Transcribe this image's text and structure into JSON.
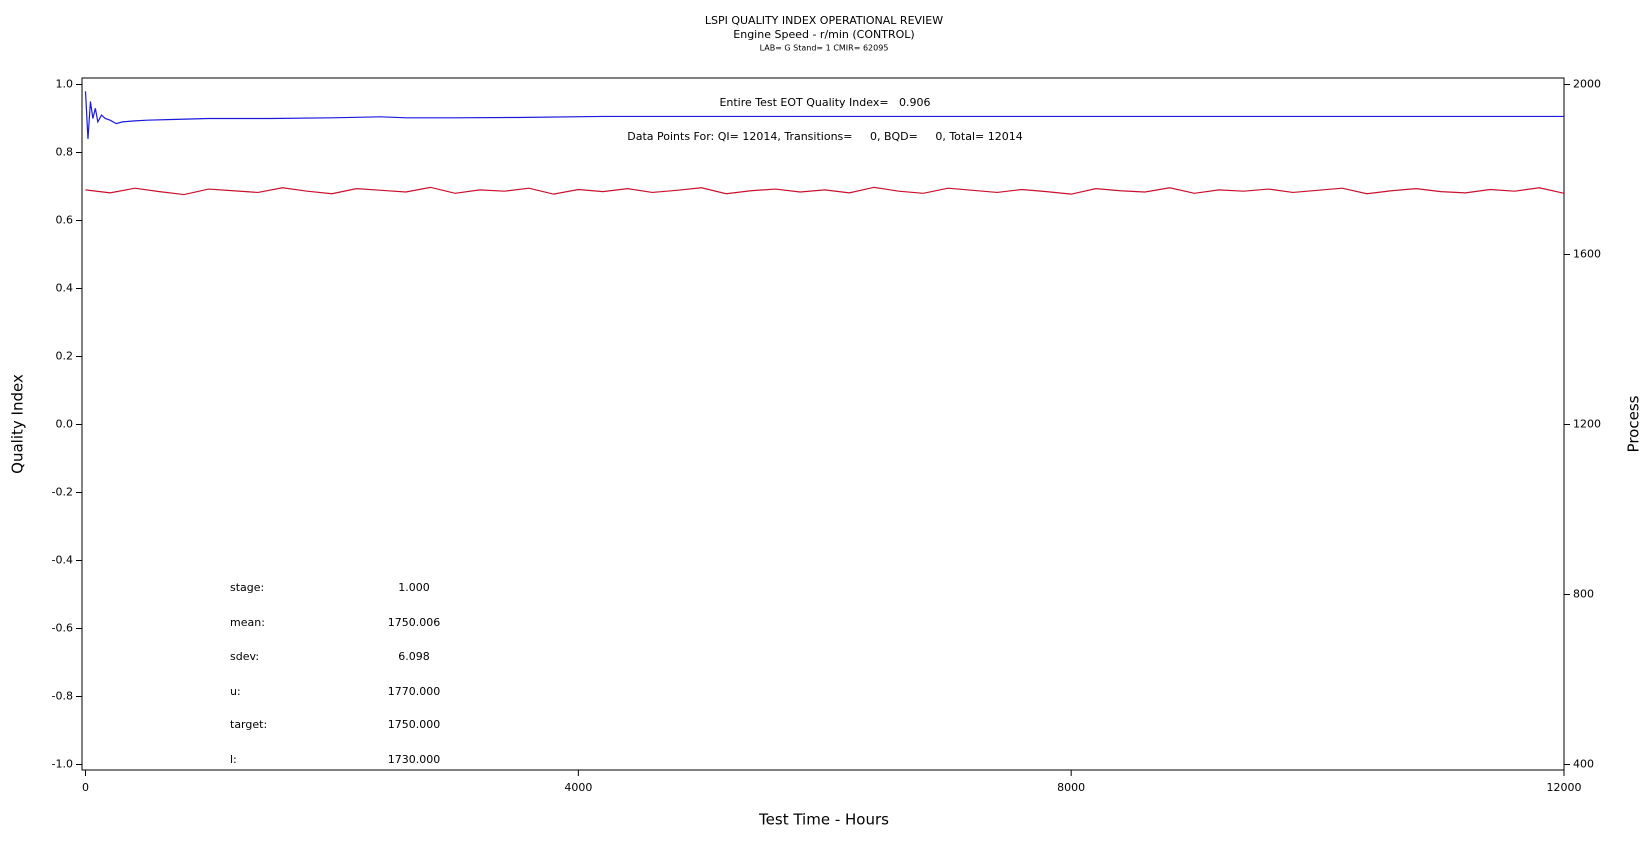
{
  "chart_data": {
    "type": "line",
    "title": "LSPI QUALITY INDEX OPERATIONAL REVIEW",
    "subtitle": "Engine Speed - r/min (CONTROL)",
    "caption": "LAB= G Stand= 1 CMIR= 62095",
    "xlabel": "Test Time - Hours",
    "ylabel": "Quality Index",
    "y2label": "Process",
    "xlim": [
      0,
      12000
    ],
    "xticks": [
      0,
      4000,
      8000,
      12000
    ],
    "ylim": [
      -1,
      1
    ],
    "yticks": [
      {
        "value": -1,
        "label": "-1.0"
      },
      -0.8,
      -0.6,
      -0.4,
      -0.2,
      {
        "value": 0,
        "label": "0.0"
      },
      0.2,
      0.4,
      0.6,
      0.8,
      {
        "value": 1,
        "label": "1.0"
      }
    ],
    "y2lim": [
      400,
      2000
    ],
    "y2ticks": [
      400,
      800,
      1200,
      1600,
      2000
    ],
    "series": [
      {
        "color": "#c8102e",
        "axis": "y2",
        "x": [
          0,
          200,
          400,
          600,
          800,
          1000,
          1200,
          1400,
          1600,
          1800,
          2000,
          2200,
          2400,
          2600,
          2800,
          3000,
          3200,
          3400,
          3600,
          3800,
          4000,
          4200,
          4400,
          4600,
          4800,
          5000,
          5200,
          5400,
          5600,
          5800,
          6000,
          6200,
          6400,
          6600,
          6800,
          7000,
          7200,
          7400,
          7600,
          7800,
          8000,
          8200,
          8400,
          8600,
          8800,
          9000,
          9200,
          9400,
          9600,
          9800,
          10000,
          10200,
          10400,
          10600,
          10800,
          11000,
          11200,
          11400,
          11600,
          11800,
          12000
        ],
        "values": [
          1752,
          1745,
          1756,
          1748,
          1741,
          1754,
          1750,
          1746,
          1757,
          1749,
          1743,
          1755,
          1751,
          1747,
          1758,
          1744,
          1752,
          1749,
          1756,
          1742,
          1753,
          1748,
          1755,
          1746,
          1751,
          1757,
          1743,
          1750,
          1754,
          1747,
          1752,
          1745,
          1758,
          1749,
          1744,
          1756,
          1751,
          1746,
          1753,
          1748,
          1742,
          1755,
          1750,
          1747,
          1757,
          1744,
          1752,
          1749,
          1754,
          1746,
          1751,
          1756,
          1743,
          1750,
          1755,
          1748,
          1745,
          1753,
          1749,
          1757,
          1744
        ]
      },
      {
        "color": "#1a1adc",
        "x": [
          0,
          20,
          40,
          60,
          80,
          100,
          130,
          160,
          200,
          250,
          300,
          400,
          500,
          700,
          1000,
          1500,
          2000,
          2400,
          2600,
          3000,
          3500,
          4200,
          6000,
          8000,
          10000,
          12000
        ],
        "values": [
          0.98,
          0.84,
          0.95,
          0.9,
          0.93,
          0.89,
          0.91,
          0.9,
          0.895,
          0.885,
          0.89,
          0.893,
          0.895,
          0.897,
          0.9,
          0.9,
          0.902,
          0.905,
          0.902,
          0.902,
          0.903,
          0.906,
          0.906,
          0.906,
          0.906,
          0.906
        ]
      }
    ],
    "annotations": [
      "Entire Test EOT Quality Index=   0.906",
      "Data Points For: QI= 12014, Transitions=     0, BQD=     0, Total= 12014"
    ],
    "stats": [
      {
        "label": "stage:",
        "value": "1.000"
      },
      {
        "label": "mean:",
        "value": "1750.006"
      },
      {
        "label": "sdev:",
        "value": "6.098"
      },
      {
        "label": "u:",
        "value": "1770.000"
      },
      {
        "label": "target:",
        "value": "1750.000"
      },
      {
        "label": "l:",
        "value": "1730.000"
      }
    ]
  }
}
